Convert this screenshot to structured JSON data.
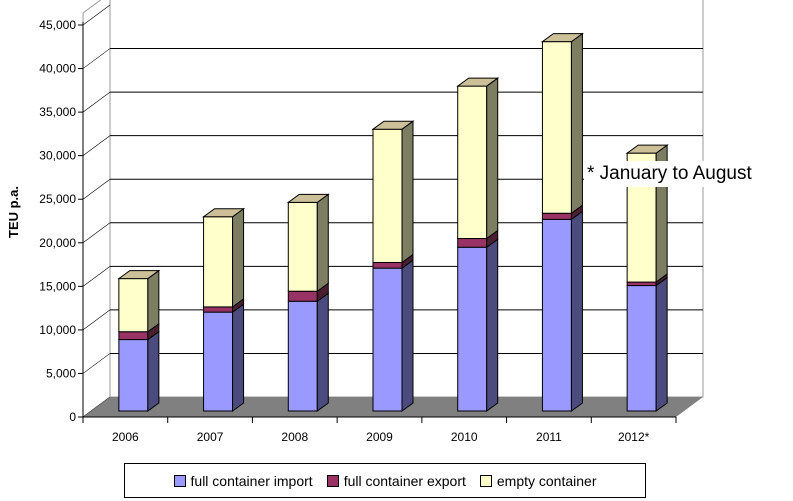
{
  "chart_data": {
    "type": "bar",
    "stacked": true,
    "three_d": true,
    "title": "",
    "xlabel": "",
    "ylabel": "TEU p.a.",
    "ylim": [
      0,
      45000
    ],
    "yticks": [
      0,
      5000,
      10000,
      15000,
      20000,
      25000,
      30000,
      35000,
      40000,
      45000
    ],
    "ytick_labels": [
      "0",
      "5,000",
      "10,000",
      "15,000",
      "20,000",
      "25,000",
      "30,000",
      "35,000",
      "40,000",
      "45,000"
    ],
    "categories": [
      "2006",
      "2007",
      "2008",
      "2009",
      "2010",
      "2011",
      "2012*"
    ],
    "series": [
      {
        "name": "full container import",
        "color": "#9999ff",
        "side_color": "#4b4b7d",
        "values": [
          8200,
          11350,
          12600,
          16400,
          18800,
          22000,
          14400
        ]
      },
      {
        "name": "full container export",
        "color": "#993366",
        "side_color": "#4a2030",
        "values": [
          900,
          600,
          1150,
          650,
          1000,
          700,
          400
        ]
      },
      {
        "name": "empty container",
        "color": "#ffffcc",
        "side_color": "#7d7d62",
        "values": [
          6100,
          10350,
          10200,
          15300,
          17500,
          19700,
          14800
        ]
      }
    ],
    "grid": true,
    "legend_placement": "bottom",
    "annotation": "* January to August"
  }
}
